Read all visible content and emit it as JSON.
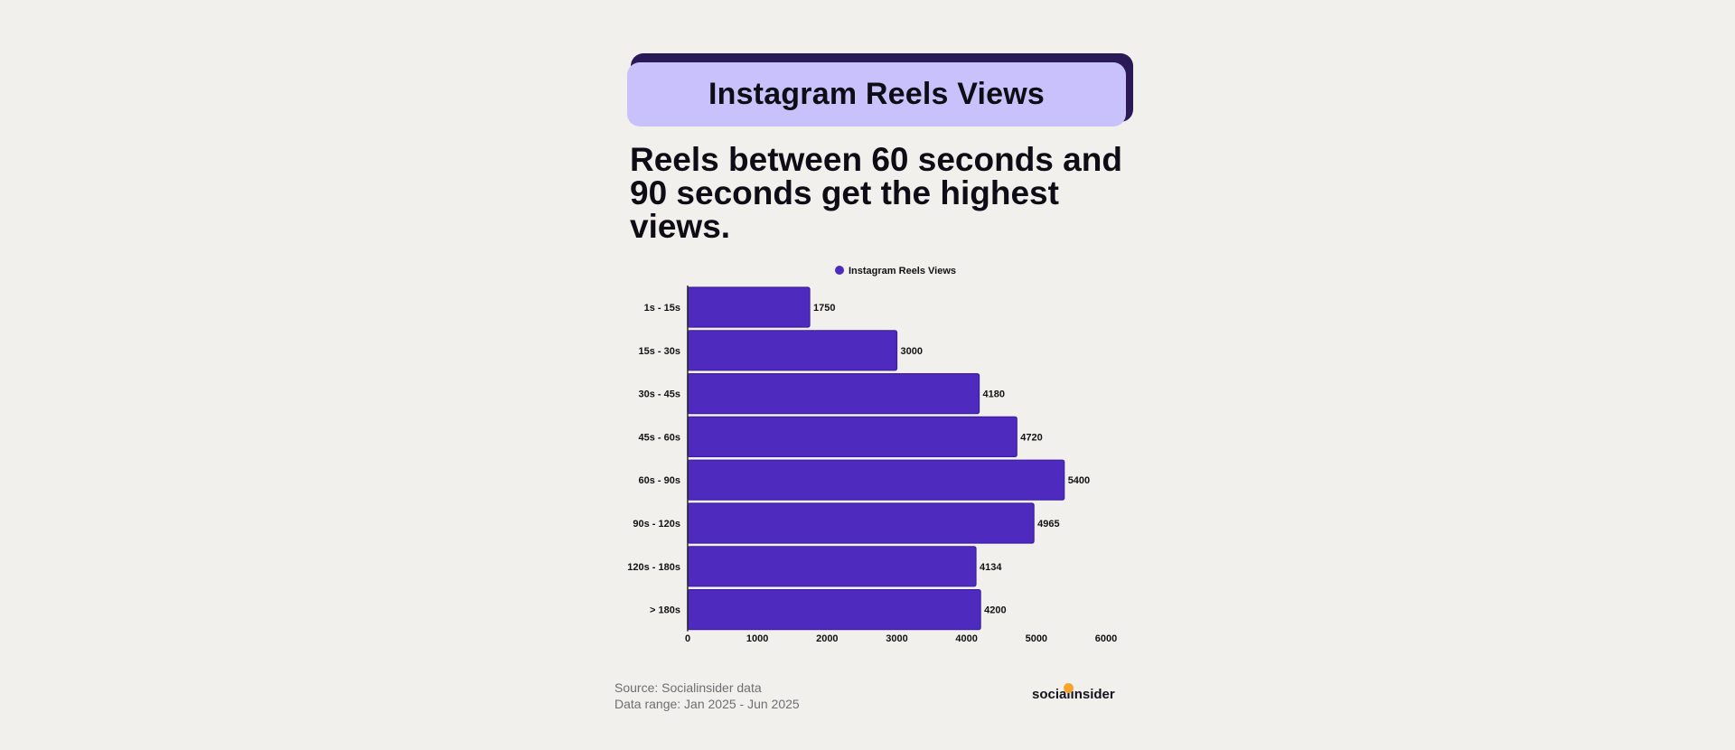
{
  "header": {
    "title": "Instagram Reels Views"
  },
  "headline": "Reels between 60 seconds and 90 seconds get the highest views.",
  "footer": {
    "source": "Source: Socialinsider data",
    "range": "Data range: Jan 2025 - Jun 2025",
    "logo": "socialinsider"
  },
  "colors": {
    "bar": "#4f2abf",
    "bar_border": "#3b1fa0",
    "title_bg": "#c9c1fb",
    "title_shadow": "#2a1956",
    "background": "#f1f0ed"
  },
  "chart_data": {
    "type": "bar",
    "orientation": "horizontal",
    "title": "",
    "legend": {
      "label": "Instagram Reels Views",
      "placement": "top-center"
    },
    "categories": [
      "1s - 15s",
      "15s - 30s",
      "30s - 45s",
      "45s - 60s",
      "60s - 90s",
      "90s - 120s",
      "120s - 180s",
      "> 180s"
    ],
    "series": [
      {
        "name": "Instagram Reels Views",
        "values": [
          1750,
          3000,
          4180,
          4720,
          5400,
          4965,
          4134,
          4200
        ]
      }
    ],
    "xlim": [
      0,
      6000
    ],
    "xticks": [
      0,
      1000,
      2000,
      3000,
      4000,
      5000,
      6000
    ],
    "xlabel": "",
    "ylabel": "",
    "grid": false
  }
}
